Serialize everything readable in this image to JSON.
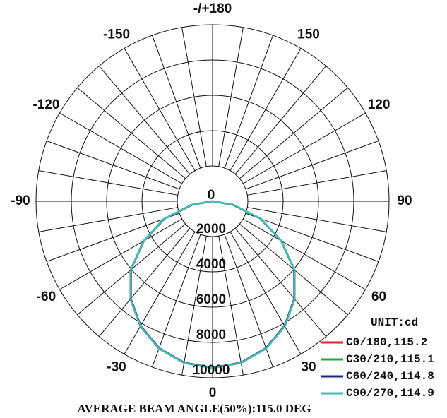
{
  "chart_data": {
    "type": "polar",
    "unit_label": "UNIT:cd",
    "footer": "AVERAGE BEAM ANGLE(50%):115.0 DEG",
    "rlim": [
      0,
      10000
    ],
    "rticks": [
      0,
      2000,
      4000,
      6000,
      8000,
      10000
    ],
    "thetaticks": [
      0,
      30,
      60,
      90,
      120,
      150,
      {
        "value": 180,
        "label": "-/+180"
      },
      -150,
      -120,
      -90,
      -60,
      -30
    ],
    "angular_grid_step": 10,
    "x": [
      -90,
      -80,
      -70,
      -60,
      -50,
      -40,
      -30,
      -20,
      -10,
      0,
      10,
      20,
      30,
      40,
      50,
      60,
      70,
      80,
      90
    ],
    "series": [
      {
        "name": "C0/180,115.2",
        "color": "#e8202a",
        "values": [
          0,
          1200,
          2900,
          4500,
          6074,
          7239,
          8184,
          8880,
          9306,
          9450,
          9306,
          8880,
          8184,
          7239,
          6074,
          4500,
          2900,
          1200,
          0
        ]
      },
      {
        "name": "C30/210,115.1",
        "color": "#22a83a",
        "values": [
          0,
          1250,
          2950,
          4520,
          6050,
          7220,
          8170,
          8870,
          9290,
          9440,
          9295,
          8875,
          8180,
          7230,
          6060,
          4510,
          2920,
          1230,
          0
        ]
      },
      {
        "name": "C60/240,114.8",
        "color": "#1c2a80",
        "values": [
          0,
          1180,
          2880,
          4480,
          6030,
          7200,
          8150,
          8850,
          9280,
          9430,
          9280,
          8850,
          8150,
          7200,
          6030,
          4480,
          2880,
          1180,
          0
        ]
      },
      {
        "name": "C90/270,114.9",
        "color": "#3cbfb8",
        "values": [
          0,
          1220,
          2910,
          4490,
          6060,
          7230,
          8175,
          8875,
          9300,
          9445,
          9300,
          8875,
          8175,
          7230,
          6060,
          4490,
          2910,
          1220,
          0
        ]
      }
    ]
  }
}
